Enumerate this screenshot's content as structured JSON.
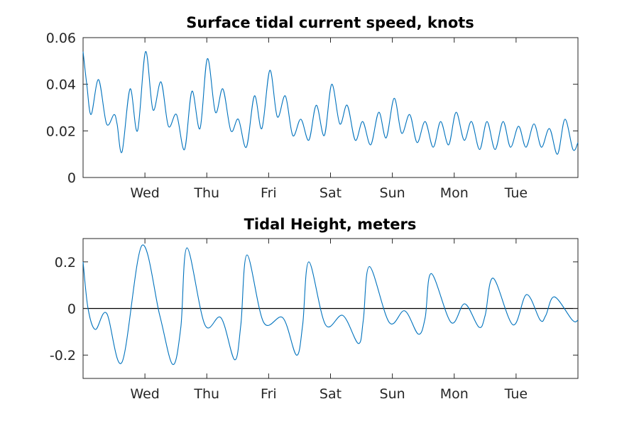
{
  "chart_data": [
    {
      "type": "line",
      "title": "Surface tidal current speed, knots",
      "xlabel": "",
      "ylabel": "",
      "x_tick_labels": [
        "Wed",
        "Thu",
        "Fri",
        "Sat",
        "Sun",
        "Mon",
        "Tue"
      ],
      "y_ticks": [
        0,
        0.02,
        0.04,
        0.06
      ],
      "y_tick_labels": [
        "0",
        "0.02",
        "0.04",
        "0.06"
      ],
      "xlim_days": [
        0,
        8
      ],
      "ylim": [
        0,
        0.06
      ],
      "grid": false,
      "series": [
        {
          "color": "#0072BD",
          "x_days": [
            0,
            0.06,
            0.13,
            0.25,
            0.38,
            0.5,
            0.55,
            0.63,
            0.76,
            0.88,
            1.01,
            1.13,
            1.26,
            1.38,
            1.51,
            1.64,
            1.76,
            1.89,
            2.01,
            2.14,
            2.26,
            2.39,
            2.51,
            2.64,
            2.77,
            2.89,
            3.02,
            3.14,
            3.27,
            3.39,
            3.52,
            3.65,
            3.77,
            3.9,
            4.02,
            4.15,
            4.27,
            4.4,
            4.52,
            4.65,
            4.78,
            4.9,
            5.03,
            5.15,
            5.28,
            5.4,
            5.53,
            5.66,
            5.78,
            5.91,
            6.03,
            6.16,
            6.28,
            6.41,
            6.53,
            6.66,
            6.79,
            6.91,
            7.04,
            7.16,
            7.29,
            7.41,
            7.54,
            7.67,
            7.79,
            7.92,
            8.0
          ],
          "values": [
            0.054,
            0.04,
            0.027,
            0.042,
            0.023,
            0.027,
            0.023,
            0.011,
            0.038,
            0.02,
            0.054,
            0.029,
            0.041,
            0.022,
            0.027,
            0.012,
            0.037,
            0.021,
            0.051,
            0.028,
            0.038,
            0.02,
            0.025,
            0.013,
            0.035,
            0.021,
            0.046,
            0.026,
            0.035,
            0.018,
            0.025,
            0.016,
            0.031,
            0.018,
            0.04,
            0.023,
            0.031,
            0.016,
            0.024,
            0.014,
            0.028,
            0.017,
            0.034,
            0.019,
            0.027,
            0.015,
            0.024,
            0.013,
            0.024,
            0.014,
            0.028,
            0.016,
            0.024,
            0.012,
            0.024,
            0.012,
            0.024,
            0.013,
            0.022,
            0.013,
            0.023,
            0.013,
            0.021,
            0.01,
            0.025,
            0.012,
            0.015
          ]
        }
      ]
    },
    {
      "type": "line",
      "title": "Tidal Height, meters",
      "xlabel": "",
      "ylabel": "",
      "x_tick_labels": [
        "Wed",
        "Thu",
        "Fri",
        "Sat",
        "Sun",
        "Mon",
        "Tue"
      ],
      "y_ticks": [
        -0.2,
        0,
        0.2
      ],
      "y_tick_labels": [
        "-0.2",
        "0",
        "0.2"
      ],
      "xlim_days": [
        0,
        8
      ],
      "ylim": [
        -0.3,
        0.3
      ],
      "grid": false,
      "reference_line_y": 0,
      "series": [
        {
          "color": "#0072BD",
          "x_days": [
            0,
            0.08,
            0.2,
            0.38,
            0.63,
            0.95,
            1.24,
            1.45,
            1.58,
            1.68,
            1.97,
            2.23,
            2.45,
            2.55,
            2.65,
            2.92,
            3.23,
            3.45,
            3.55,
            3.65,
            3.92,
            4.2,
            4.45,
            4.53,
            4.63,
            4.95,
            5.2,
            5.42,
            5.53,
            5.63,
            5.95,
            6.17,
            6.4,
            6.5,
            6.63,
            6.95,
            7.17,
            7.39,
            7.48,
            7.62,
            7.91,
            8.0
          ],
          "values": [
            0.2,
            0.0,
            -0.09,
            -0.02,
            -0.23,
            0.27,
            -0.03,
            -0.24,
            -0.08,
            0.26,
            -0.07,
            -0.04,
            -0.22,
            -0.07,
            0.23,
            -0.06,
            -0.04,
            -0.2,
            -0.07,
            0.2,
            -0.07,
            -0.03,
            -0.15,
            -0.05,
            0.18,
            -0.06,
            -0.01,
            -0.11,
            -0.04,
            0.15,
            -0.06,
            0.02,
            -0.08,
            -0.03,
            0.13,
            -0.07,
            0.06,
            -0.05,
            -0.03,
            0.05,
            -0.05,
            -0.05
          ]
        }
      ]
    }
  ]
}
